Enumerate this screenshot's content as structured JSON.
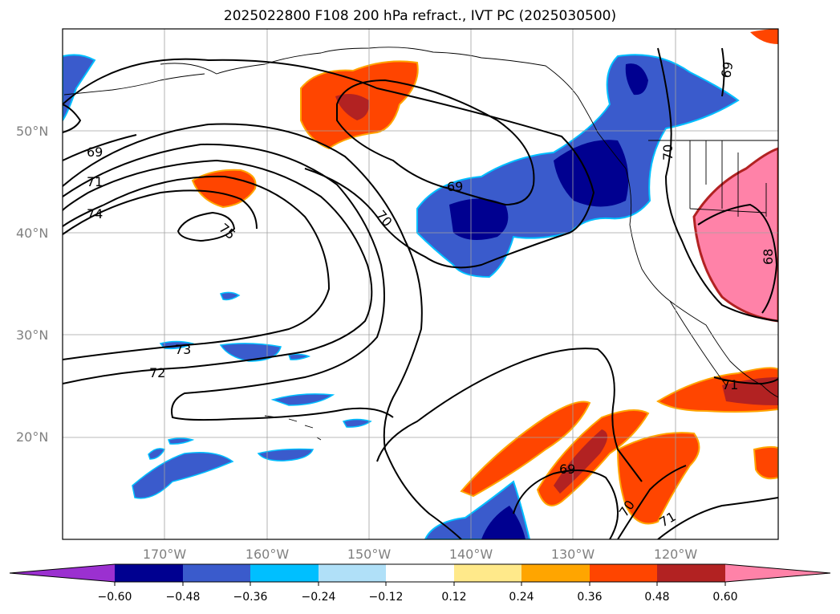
{
  "title": "2025022800 F108 200 hPa refract., IVT PC (2025030500)",
  "map": {
    "lon_range": [
      -180,
      -110
    ],
    "lat_range": [
      10,
      60
    ],
    "lon_ticks": [
      {
        "value": -170,
        "label": "170°W"
      },
      {
        "value": -160,
        "label": "160°W"
      },
      {
        "value": -150,
        "label": "150°W"
      },
      {
        "value": -140,
        "label": "140°W"
      },
      {
        "value": -130,
        "label": "130°W"
      },
      {
        "value": -120,
        "label": "120°W"
      }
    ],
    "lat_ticks": [
      {
        "value": 20,
        "label": "20°N"
      },
      {
        "value": 30,
        "label": "30°N"
      },
      {
        "value": 40,
        "label": "40°N"
      },
      {
        "value": 50,
        "label": "50°N"
      }
    ],
    "grid": true,
    "contour_labels": [
      "69",
      "71",
      "74",
      "75",
      "69",
      "70",
      "73",
      "72",
      "69",
      "70",
      "68",
      "71",
      "69",
      "70",
      "71"
    ]
  },
  "colorbar": {
    "colors": [
      "#9b30d0",
      "#000090",
      "#3a5bcc",
      "#00bfff",
      "#b0e0f8",
      "#ffffff",
      "#ffe98a",
      "#ffa500",
      "#ff4500",
      "#b22222",
      "#ff82a8"
    ],
    "labels": [
      "−0.60",
      "−0.48",
      "−0.36",
      "−0.24",
      "−0.12",
      "0.12",
      "0.24",
      "0.36",
      "0.48",
      "0.60"
    ]
  }
}
